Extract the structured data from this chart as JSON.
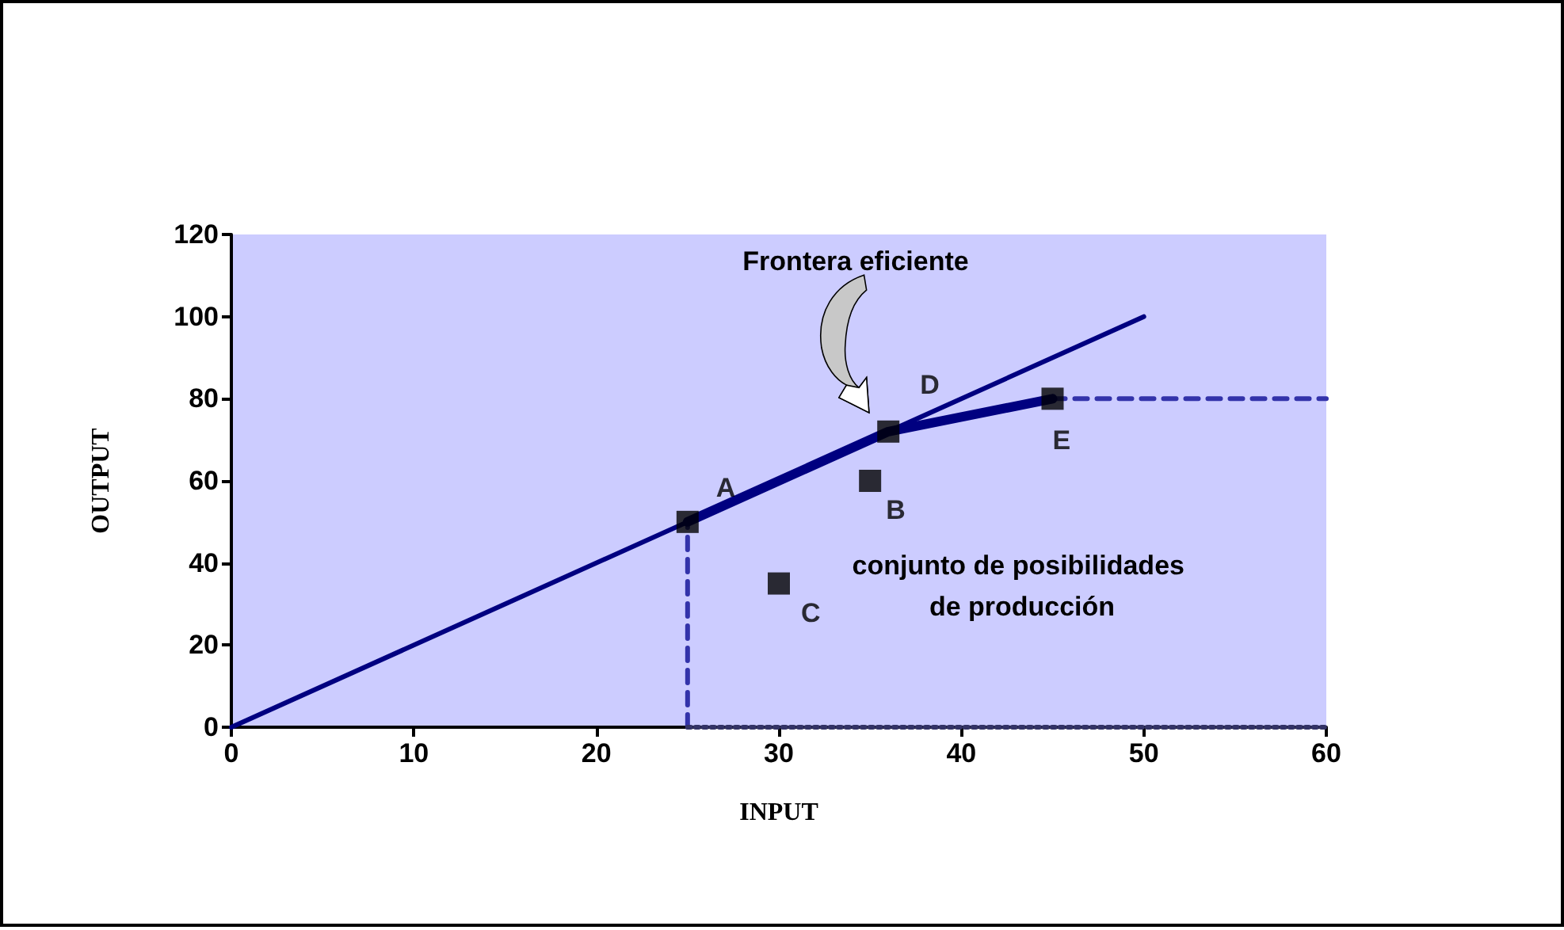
{
  "chart_data": {
    "type": "line",
    "xlabel": "INPUT",
    "ylabel": "OUTPUT",
    "xlim": [
      0,
      60
    ],
    "xticks": [
      0,
      10,
      20,
      30,
      40,
      50,
      60
    ],
    "ylim": [
      0,
      120
    ],
    "yticks": [
      0,
      20,
      40,
      60,
      80,
      100,
      120
    ],
    "grid": false,
    "annotations": [
      "Frontera eficiente",
      "conjunto de posibilidades de producción"
    ],
    "series": [
      {
        "color": "#000080",
        "marker": "none",
        "line_style": "solid",
        "x": [
          0,
          50
        ],
        "values": [
          0,
          100
        ]
      },
      {
        "color": "#000080",
        "marker": "none",
        "line_style": "solid",
        "x": [
          25,
          36,
          45
        ],
        "values": [
          50,
          72,
          80
        ]
      },
      {
        "color": "#3333aa",
        "marker": "none",
        "line_style": "dashed",
        "x": [
          25,
          25
        ],
        "values": [
          0,
          50
        ]
      },
      {
        "color": "#3333aa",
        "marker": "none",
        "line_style": "dashed",
        "x": [
          45,
          60
        ],
        "values": [
          80,
          80
        ]
      },
      {
        "color": "#333366",
        "marker": "none",
        "line_style": "dotted",
        "x": [
          25,
          60
        ],
        "values": [
          0,
          0
        ]
      },
      {
        "type": "scatter",
        "color": "#000000",
        "marker": "square",
        "x": [
          25,
          35,
          30,
          36,
          45
        ],
        "values": [
          50,
          60,
          35,
          72,
          80
        ],
        "value_labels": [
          "A",
          "B",
          "C",
          "D",
          "E"
        ]
      }
    ]
  }
}
